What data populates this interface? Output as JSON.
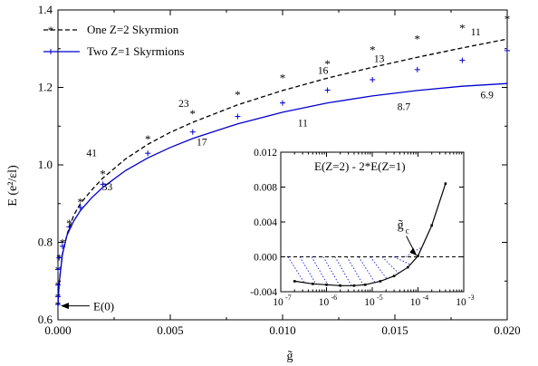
{
  "chart_data": [
    {
      "type": "line",
      "xlabel": "g̃",
      "ylabel": "E (e²/εl)",
      "xlim": [
        0.0,
        0.02
      ],
      "ylim": [
        0.6,
        1.4
      ],
      "x_ticks": [
        "0.000",
        "0.005",
        "0.010",
        "0.015",
        "0.020"
      ],
      "y_ticks": [
        "0.6",
        "0.8",
        "1.0",
        "1.2",
        "1.4"
      ],
      "legend": {
        "position": "top-left",
        "entries": [
          "One Z=2 Skyrmion",
          "Two Z=1 Skyrmions"
        ]
      },
      "series": [
        {
          "name": "One Z=2 Skyrmion",
          "style": "dashed-line",
          "color": "#000000",
          "x": [
            0.0,
            2e-05,
            5e-05,
            0.0001,
            0.0002,
            0.0004,
            0.0007,
            0.001,
            0.0015,
            0.002,
            0.003,
            0.004,
            0.005,
            0.006,
            0.008,
            0.01,
            0.012,
            0.014,
            0.016,
            0.018,
            0.02
          ],
          "y": [
            0.636,
            0.66,
            0.69,
            0.72,
            0.77,
            0.82,
            0.87,
            0.9,
            0.935,
            0.966,
            1.015,
            1.053,
            1.084,
            1.11,
            1.155,
            1.192,
            1.224,
            1.252,
            1.278,
            1.302,
            1.325
          ]
        },
        {
          "name": "Two Z=1 Skyrmions",
          "style": "solid-line",
          "color": "#0000cc",
          "x": [
            0.0,
            2e-05,
            5e-05,
            0.0001,
            0.0002,
            0.0004,
            0.0007,
            0.001,
            0.0015,
            0.002,
            0.003,
            0.004,
            0.005,
            0.006,
            0.008,
            0.01,
            0.012,
            0.014,
            0.016,
            0.018,
            0.02
          ],
          "y": [
            0.636,
            0.66,
            0.69,
            0.72,
            0.77,
            0.818,
            0.855,
            0.882,
            0.915,
            0.942,
            0.985,
            1.018,
            1.045,
            1.068,
            1.106,
            1.136,
            1.16,
            1.178,
            1.192,
            1.203,
            1.21
          ]
        },
        {
          "name": "",
          "style": "star-markers",
          "color": "#000000",
          "x": [
            0.0,
            0.0,
            0.0,
            0.0,
            5e-05,
            0.0002,
            0.0005,
            0.001,
            0.002,
            0.004,
            0.006,
            0.008,
            0.01,
            0.012,
            0.014,
            0.016,
            0.018,
            0.02
          ],
          "y": [
            0.64,
            0.66,
            0.69,
            0.73,
            0.76,
            0.8,
            0.85,
            0.905,
            0.978,
            1.068,
            1.133,
            1.183,
            1.226,
            1.262,
            1.298,
            1.326,
            1.354,
            1.378
          ]
        },
        {
          "name": "",
          "style": "plus-markers",
          "color": "#0000cc",
          "x": [
            0.0,
            0.0,
            0.0,
            0.0,
            5e-05,
            0.0002,
            0.0005,
            0.001,
            0.002,
            0.004,
            0.006,
            0.008,
            0.01,
            0.012,
            0.014,
            0.016,
            0.018,
            0.02
          ],
          "y": [
            0.64,
            0.66,
            0.69,
            0.73,
            0.76,
            0.79,
            0.84,
            0.89,
            0.95,
            1.03,
            1.085,
            1.125,
            1.16,
            1.193,
            1.22,
            1.246,
            1.27,
            1.295
          ]
        }
      ],
      "annotations": [
        {
          "text": "41",
          "x": 0.0015,
          "y": 1.022
        },
        {
          "text": "23",
          "x": 0.0056,
          "y": 1.15
        },
        {
          "text": "16",
          "x": 0.0118,
          "y": 1.235
        },
        {
          "text": "13",
          "x": 0.0143,
          "y": 1.266
        },
        {
          "text": "11",
          "x": 0.0186,
          "y": 1.335
        },
        {
          "text": "33",
          "x": 0.0022,
          "y": 0.935
        },
        {
          "text": "17",
          "x": 0.0064,
          "y": 1.05
        },
        {
          "text": "11",
          "x": 0.0109,
          "y": 1.1
        },
        {
          "text": "8.7",
          "x": 0.0154,
          "y": 1.142
        },
        {
          "text": "6.9",
          "x": 0.0191,
          "y": 1.172
        },
        {
          "text": "E(0)",
          "x": 0.0008,
          "y": 0.636
        }
      ]
    },
    {
      "type": "line",
      "title": "E(Z=2) - 2*E(Z=1)",
      "xlabel": "",
      "ylabel": "",
      "xscale": "log",
      "xlim": [
        1e-07,
        0.001
      ],
      "ylim": [
        -0.004,
        0.012
      ],
      "x_ticks": [
        "10",
        "10",
        "10",
        "10",
        "10"
      ],
      "x_tick_exponents": [
        "-7",
        "-6",
        "-5",
        "-4",
        "-3"
      ],
      "y_ticks": [
        "-0.004",
        "0.000",
        "0.004",
        "0.008",
        "0.012"
      ],
      "series": [
        {
          "name": "",
          "style": "solid-line-with-points",
          "color": "#000000",
          "x": [
            2e-07,
            5e-07,
            1e-06,
            2e-06,
            4e-06,
            7e-06,
            1.5e-05,
            3e-05,
            6e-05,
            0.0001,
            0.0002,
            0.0004
          ],
          "y": [
            -0.0028,
            -0.0031,
            -0.0032,
            -0.0033,
            -0.0033,
            -0.0032,
            -0.0028,
            -0.0022,
            -0.0012,
            0.0001,
            0.0036,
            0.0084
          ]
        }
      ],
      "zero_line": "dashed",
      "annotations": [
        {
          "text": "g̃",
          "subscript": "c",
          "x": 8e-05,
          "y": 0.0026
        }
      ]
    }
  ]
}
